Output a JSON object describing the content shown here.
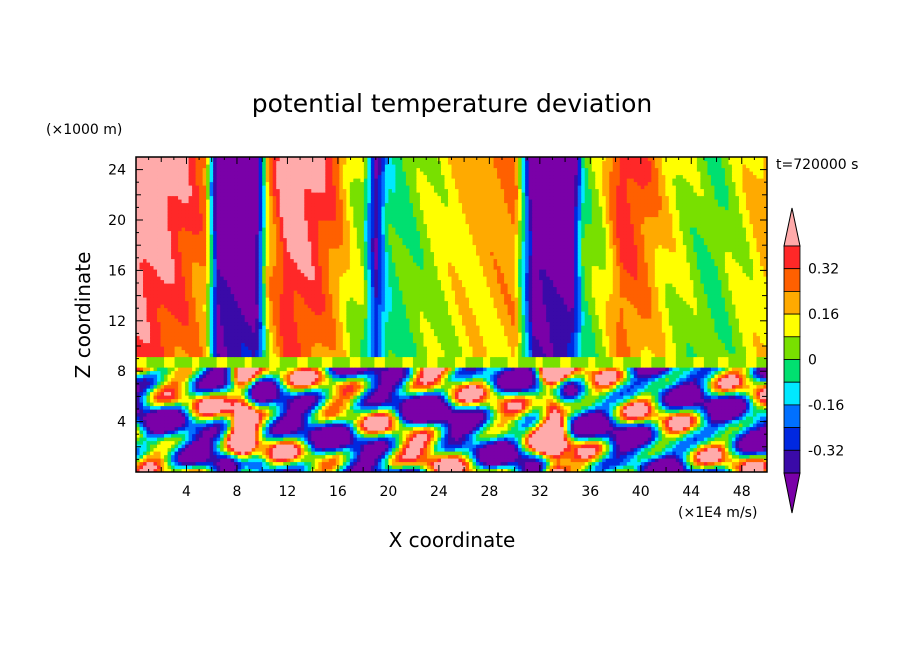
{
  "chart_data": {
    "type": "heatmap",
    "title": "potential temperature deviation",
    "xlabel": "X coordinate",
    "ylabel": "Z coordinate",
    "x_units": "(×1E4 m/s)",
    "y_units": "(×1000 m)",
    "time_label": "t=720000 s",
    "xlim": [
      0,
      50
    ],
    "ylim": [
      0,
      25
    ],
    "x_ticks": [
      "4",
      "8",
      "12",
      "16",
      "20",
      "24",
      "28",
      "32",
      "36",
      "40",
      "44",
      "48"
    ],
    "y_ticks": [
      "4",
      "8",
      "12",
      "16",
      "20",
      "24"
    ],
    "colorbar": {
      "levels": [
        -0.4,
        -0.32,
        -0.24,
        -0.16,
        -0.08,
        0,
        0.08,
        0.16,
        0.24,
        0.32,
        0.4
      ],
      "labels": [
        "0.32",
        "0.16",
        "0",
        "-0.16",
        "-0.32"
      ],
      "colors": [
        "#7a00a8",
        "#3a0aa8",
        "#0028e0",
        "#0070ff",
        "#00e8ff",
        "#00e070",
        "#78e000",
        "#ffff00",
        "#ffaa00",
        "#ff6000",
        "#ff2828",
        "#ffaaaa"
      ]
    },
    "upper_layer_columns_x": [
      {
        "x": 0,
        "v": 0.5
      },
      {
        "x": 2,
        "v": 0.45
      },
      {
        "x": 4,
        "v": 0.35
      },
      {
        "x": 5.5,
        "v": 0.25
      },
      {
        "x": 6.5,
        "v": -0.5
      },
      {
        "x": 8,
        "v": -0.5
      },
      {
        "x": 9.5,
        "v": -0.5
      },
      {
        "x": 10.5,
        "v": 0.2
      },
      {
        "x": 12,
        "v": 0.45
      },
      {
        "x": 14,
        "v": 0.4
      },
      {
        "x": 16,
        "v": 0.25
      },
      {
        "x": 17,
        "v": 0.12
      },
      {
        "x": 18,
        "v": 0.05
      },
      {
        "x": 19,
        "v": -0.4
      },
      {
        "x": 20,
        "v": -0.05
      },
      {
        "x": 22,
        "v": 0.02
      },
      {
        "x": 24,
        "v": 0.1
      },
      {
        "x": 26,
        "v": 0.16
      },
      {
        "x": 28,
        "v": 0.2
      },
      {
        "x": 30,
        "v": 0.25
      },
      {
        "x": 31.5,
        "v": -0.5
      },
      {
        "x": 33,
        "v": -0.5
      },
      {
        "x": 34.5,
        "v": -0.5
      },
      {
        "x": 35.5,
        "v": 0.0
      },
      {
        "x": 37,
        "v": 0.1
      },
      {
        "x": 38.5,
        "v": 0.35
      },
      {
        "x": 40,
        "v": 0.3
      },
      {
        "x": 42,
        "v": 0.15
      },
      {
        "x": 44,
        "v": 0.05
      },
      {
        "x": 46,
        "v": 0.0
      },
      {
        "x": 48,
        "v": 0.1
      },
      {
        "x": 50,
        "v": 0.2
      }
    ]
  }
}
